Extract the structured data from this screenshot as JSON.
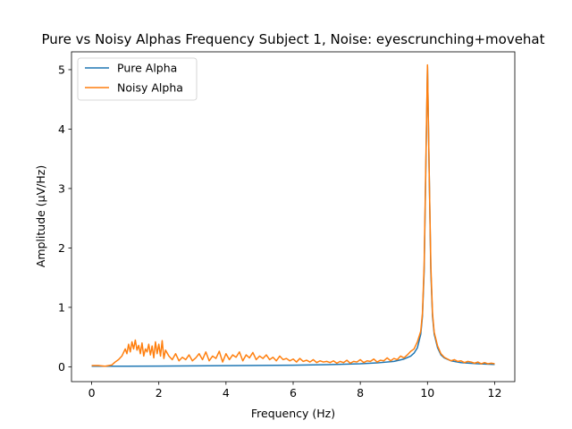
{
  "chart_data": {
    "type": "line",
    "title": "Pure vs Noisy Alphas Frequency Subject 1, Noise: eyescrunching+movehat",
    "xlabel": "Frequency (Hz)",
    "ylabel": "Amplitude (μV/Hz)",
    "xlim": [
      -0.6,
      12.6
    ],
    "ylim": [
      -0.25,
      5.3
    ],
    "xticks": [
      0,
      2,
      4,
      6,
      8,
      10,
      12
    ],
    "xtick_labels": [
      "0",
      "2",
      "4",
      "6",
      "8",
      "10",
      "12"
    ],
    "yticks": [
      0,
      1,
      2,
      3,
      4,
      5
    ],
    "ytick_labels": [
      "0",
      "1",
      "2",
      "3",
      "4",
      "5"
    ],
    "grid": false,
    "legend_position": "upper left",
    "series": [
      {
        "name": "Pure Alpha",
        "color": "#1f77b4",
        "x": [
          0,
          0.5,
          1,
          2,
          3,
          4,
          5,
          6,
          7,
          8,
          8.5,
          9,
          9.3,
          9.5,
          9.6,
          9.7,
          9.8,
          9.85,
          9.9,
          9.95,
          10,
          10.05,
          10.1,
          10.15,
          10.2,
          10.3,
          10.4,
          10.5,
          10.7,
          11,
          11.5,
          12
        ],
        "values": [
          0.01,
          0.01,
          0.01,
          0.012,
          0.015,
          0.018,
          0.022,
          0.027,
          0.035,
          0.05,
          0.065,
          0.09,
          0.13,
          0.18,
          0.23,
          0.32,
          0.55,
          0.85,
          1.6,
          3.3,
          5.05,
          3.3,
          1.6,
          0.85,
          0.55,
          0.32,
          0.2,
          0.15,
          0.1,
          0.07,
          0.05,
          0.04
        ]
      },
      {
        "name": "Noisy Alpha",
        "color": "#ff7f0e",
        "x": [
          0,
          0.2,
          0.4,
          0.6,
          0.7,
          0.8,
          0.9,
          1.0,
          1.05,
          1.1,
          1.15,
          1.2,
          1.25,
          1.3,
          1.35,
          1.4,
          1.45,
          1.5,
          1.55,
          1.6,
          1.65,
          1.7,
          1.75,
          1.8,
          1.85,
          1.9,
          1.95,
          2.0,
          2.05,
          2.1,
          2.15,
          2.2,
          2.3,
          2.4,
          2.5,
          2.6,
          2.7,
          2.8,
          2.9,
          3.0,
          3.1,
          3.2,
          3.3,
          3.4,
          3.5,
          3.6,
          3.7,
          3.8,
          3.9,
          4.0,
          4.1,
          4.2,
          4.3,
          4.4,
          4.5,
          4.6,
          4.7,
          4.8,
          4.9,
          5.0,
          5.1,
          5.2,
          5.3,
          5.4,
          5.5,
          5.6,
          5.7,
          5.8,
          5.9,
          6.0,
          6.1,
          6.2,
          6.3,
          6.4,
          6.5,
          6.6,
          6.7,
          6.8,
          6.9,
          7.0,
          7.1,
          7.2,
          7.3,
          7.4,
          7.5,
          7.6,
          7.7,
          7.8,
          7.9,
          8.0,
          8.1,
          8.2,
          8.3,
          8.4,
          8.5,
          8.6,
          8.7,
          8.8,
          8.9,
          9.0,
          9.1,
          9.2,
          9.3,
          9.4,
          9.5,
          9.6,
          9.7,
          9.8,
          9.85,
          9.9,
          9.95,
          10.0,
          10.05,
          10.1,
          10.15,
          10.2,
          10.3,
          10.4,
          10.5,
          10.6,
          10.7,
          10.8,
          10.9,
          11.0,
          11.1,
          11.2,
          11.3,
          11.4,
          11.5,
          11.6,
          11.7,
          11.8,
          11.9,
          12.0
        ],
        "values": [
          0.02,
          0.02,
          0.01,
          0.03,
          0.08,
          0.12,
          0.18,
          0.3,
          0.22,
          0.38,
          0.25,
          0.42,
          0.3,
          0.45,
          0.28,
          0.36,
          0.22,
          0.4,
          0.18,
          0.3,
          0.25,
          0.38,
          0.2,
          0.35,
          0.15,
          0.42,
          0.22,
          0.38,
          0.18,
          0.44,
          0.14,
          0.28,
          0.18,
          0.12,
          0.22,
          0.1,
          0.16,
          0.12,
          0.2,
          0.1,
          0.15,
          0.22,
          0.12,
          0.25,
          0.1,
          0.18,
          0.14,
          0.26,
          0.08,
          0.22,
          0.12,
          0.2,
          0.16,
          0.25,
          0.1,
          0.2,
          0.15,
          0.24,
          0.12,
          0.18,
          0.14,
          0.2,
          0.12,
          0.16,
          0.1,
          0.18,
          0.12,
          0.14,
          0.1,
          0.13,
          0.08,
          0.14,
          0.09,
          0.11,
          0.08,
          0.12,
          0.07,
          0.1,
          0.08,
          0.09,
          0.07,
          0.1,
          0.06,
          0.09,
          0.07,
          0.11,
          0.06,
          0.09,
          0.08,
          0.12,
          0.07,
          0.1,
          0.09,
          0.13,
          0.08,
          0.11,
          0.1,
          0.15,
          0.1,
          0.14,
          0.12,
          0.18,
          0.15,
          0.2,
          0.26,
          0.3,
          0.42,
          0.6,
          0.9,
          1.7,
          3.4,
          5.08,
          3.3,
          1.7,
          0.9,
          0.58,
          0.35,
          0.22,
          0.16,
          0.13,
          0.1,
          0.12,
          0.09,
          0.1,
          0.07,
          0.09,
          0.08,
          0.06,
          0.08,
          0.05,
          0.07,
          0.05,
          0.06,
          0.05
        ]
      }
    ]
  }
}
